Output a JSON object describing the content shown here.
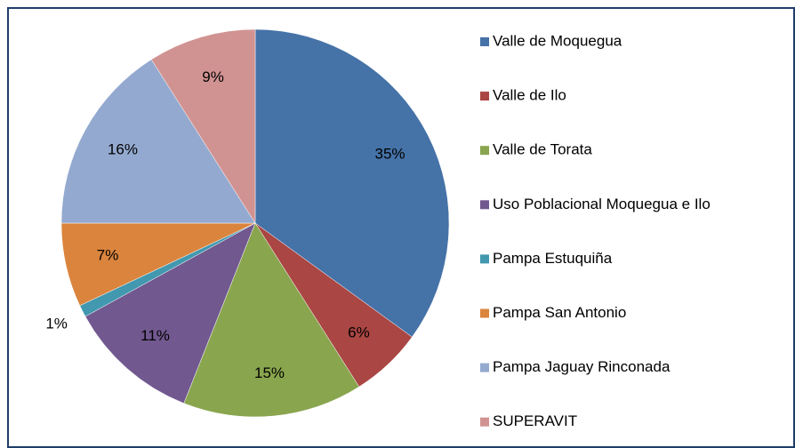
{
  "chart_data": {
    "type": "pie",
    "categories": [
      "Valle de Moquegua",
      "Valle de Ilo",
      "Valle de Torata",
      "Uso Poblacional Moquegua e Ilo",
      "Pampa Estuquiña",
      "Pampa San Antonio",
      "Pampa Jaguay Rinconada",
      "SUPERAVIT"
    ],
    "values": [
      35,
      6,
      15,
      11,
      1,
      7,
      16,
      9
    ],
    "value_labels": [
      "35%",
      "6%",
      "15%",
      "11%",
      "1%",
      "7%",
      "16%",
      "9%"
    ],
    "colors": [
      "#4572a7",
      "#aa4643",
      "#89a54e",
      "#71588f",
      "#4198af",
      "#db843d",
      "#93a9cf",
      "#d19392"
    ],
    "legend": "right"
  }
}
